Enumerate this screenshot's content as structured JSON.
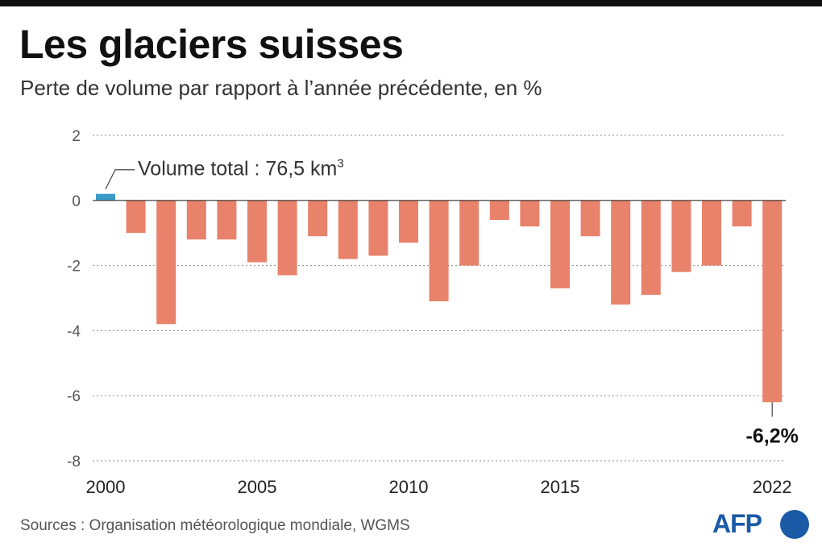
{
  "header": {
    "title": "Les glaciers suisses",
    "subtitle": "Perte de volume par rapport à l’année précédente, en %"
  },
  "footer": {
    "sources": "Sources : Organisation météorologique mondiale, WGMS",
    "logo_text": "AFP"
  },
  "colors": {
    "negative_bar": "#e8826a",
    "positive_bar": "#3a9ac9",
    "grid": "#888888",
    "logo": "#1a5aa6"
  },
  "chart_data": {
    "type": "bar",
    "title": "Les glaciers suisses",
    "subtitle": "Perte de volume par rapport à l’année précédente, en %",
    "x": [
      2000,
      2001,
      2002,
      2003,
      2004,
      2005,
      2006,
      2007,
      2008,
      2009,
      2010,
      2011,
      2012,
      2013,
      2014,
      2015,
      2016,
      2017,
      2018,
      2019,
      2020,
      2021,
      2022
    ],
    "values": [
      0.2,
      -1.0,
      -3.8,
      -1.2,
      -1.2,
      -1.9,
      -2.3,
      -1.1,
      -1.8,
      -1.7,
      -1.3,
      -3.1,
      -2.0,
      -0.6,
      -0.8,
      -2.7,
      -1.1,
      -3.2,
      -2.9,
      -2.2,
      -2.0,
      -0.8,
      -6.2
    ],
    "x_tick_labels": [
      "2000",
      "2005",
      "2010",
      "2015",
      "2022"
    ],
    "x_tick_years": [
      2000,
      2005,
      2010,
      2015,
      2022
    ],
    "y_ticks": [
      2,
      0,
      -2,
      -4,
      -6,
      -8
    ],
    "ylim": [
      -8,
      2
    ],
    "xlabel": "",
    "ylabel": "",
    "grid": "dotted horizontal",
    "annotations": {
      "first": {
        "year": 2000,
        "text_main": "Volume total : 76,5 km",
        "text_sup": "3"
      },
      "last": {
        "year": 2022,
        "text": "-6,2%"
      }
    }
  }
}
